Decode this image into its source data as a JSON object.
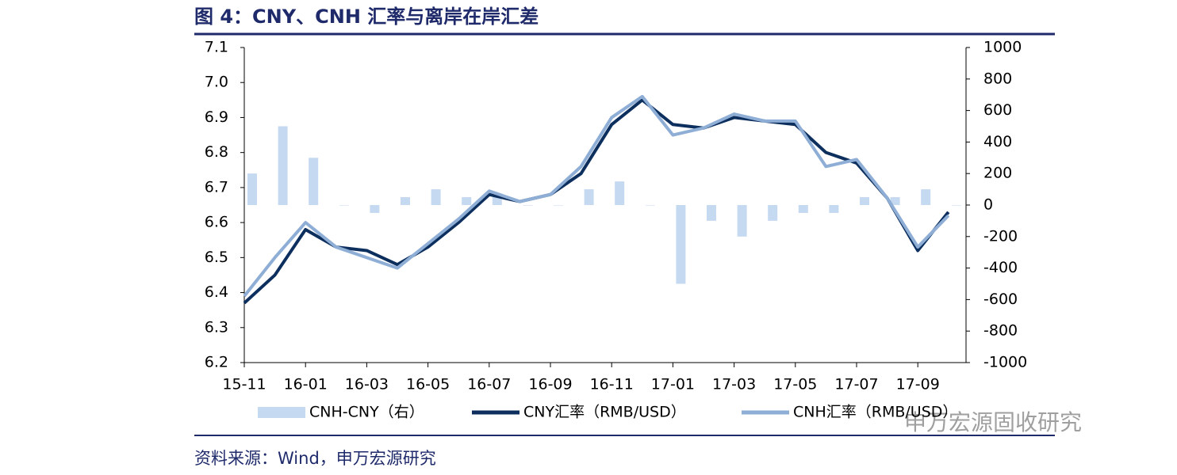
{
  "chart_data": {
    "type": "line",
    "title": "图 4：CNY、CNH 汇率与离岸在岸汇差",
    "source": "资料来源：Wind，申万宏源研究",
    "watermark": "申万宏源固收研究",
    "categories": [
      "15-11",
      null,
      "16-01",
      null,
      "16-03",
      null,
      "16-05",
      null,
      "16-07",
      null,
      "16-09",
      null,
      "16-11",
      null,
      "17-01",
      null,
      "17-03",
      null,
      "17-05",
      null,
      "17-07",
      null,
      "17-09",
      null
    ],
    "series": [
      {
        "name": "CNH-CNY（右）",
        "type": "bar",
        "axis": "y2",
        "color": "#c5d9f1",
        "values": [
          200,
          500,
          300,
          0,
          -50,
          50,
          100,
          50,
          50,
          0,
          0,
          100,
          150,
          0,
          -500,
          -100,
          -200,
          -100,
          -50,
          -50,
          50,
          50,
          100,
          0
        ]
      },
      {
        "name": "CNY汇率（RMB/USD）",
        "type": "line",
        "color": "#0d2f5e",
        "values": [
          6.37,
          6.45,
          6.58,
          6.53,
          6.52,
          6.48,
          6.53,
          6.6,
          6.68,
          6.66,
          6.68,
          6.74,
          6.88,
          6.95,
          6.88,
          6.87,
          6.9,
          6.89,
          6.88,
          6.8,
          6.77,
          6.67,
          6.52,
          6.63
        ]
      },
      {
        "name": "CNH汇率（RMB/USD）",
        "type": "line",
        "color": "#8eaed6",
        "values": [
          6.39,
          6.5,
          6.6,
          6.53,
          6.5,
          6.47,
          6.54,
          6.61,
          6.69,
          6.66,
          6.68,
          6.76,
          6.9,
          6.96,
          6.85,
          6.87,
          6.91,
          6.89,
          6.89,
          6.76,
          6.78,
          6.67,
          6.53,
          6.62
        ]
      }
    ],
    "ylim": [
      6.2,
      7.1
    ],
    "yticks": [
      6.2,
      6.3,
      6.4,
      6.5,
      6.6,
      6.7,
      6.8,
      6.9,
      {
        "value": 7,
        "label": "7.0"
      },
      7.1
    ],
    "y2lim": [
      -1000,
      1000
    ],
    "y2ticks": [
      -1000,
      -800,
      -600,
      -400,
      -200,
      0,
      200,
      400,
      600,
      800,
      1000
    ],
    "legend": "bottom"
  }
}
